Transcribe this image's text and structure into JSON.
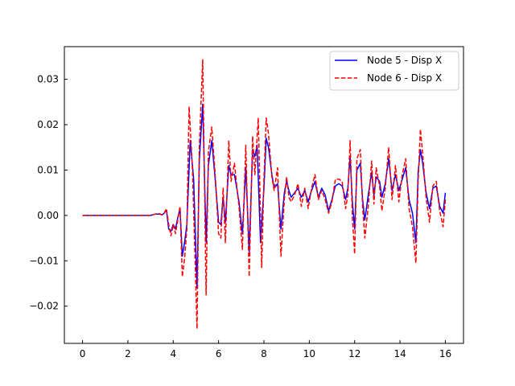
{
  "chart_data": {
    "type": "line",
    "title": "",
    "xlabel": "",
    "ylabel": "",
    "xlim": [
      -0.8,
      16.8
    ],
    "ylim": [
      -0.0282,
      0.0372
    ],
    "grid": false,
    "legend_position": "top-right",
    "x_ticks": [
      0,
      2,
      4,
      6,
      8,
      10,
      12,
      14,
      16
    ],
    "y_ticks": [
      -0.02,
      -0.01,
      0.0,
      0.01,
      0.02,
      0.03
    ],
    "x_tick_labels": [
      "0",
      "2",
      "4",
      "6",
      "8",
      "10",
      "12",
      "14",
      "16"
    ],
    "y_tick_labels": [
      "−0.02",
      "−0.01",
      "0.00",
      "0.01",
      "0.02",
      "0.03"
    ],
    "series": [
      {
        "name": "Node 5 - Disp X",
        "color": "#0000ff",
        "style": "solid",
        "points": [
          [
            0,
            0
          ],
          [
            1,
            0
          ],
          [
            2,
            0
          ],
          [
            3,
            0
          ],
          [
            3.2,
            0.0003
          ],
          [
            3.4,
            0.0003
          ],
          [
            3.5,
            0.0001
          ],
          [
            3.6,
            0.0005
          ],
          [
            3.7,
            0.0012
          ],
          [
            3.8,
            -0.003
          ],
          [
            3.9,
            -0.0035
          ],
          [
            4.0,
            -0.002
          ],
          [
            4.1,
            -0.003
          ],
          [
            4.2,
            -0.0005
          ],
          [
            4.3,
            0.0015
          ],
          [
            4.4,
            -0.009
          ],
          [
            4.5,
            -0.006
          ],
          [
            4.6,
            -0.002
          ],
          [
            4.75,
            0.0165
          ],
          [
            4.9,
            0.008
          ],
          [
            5.05,
            -0.016
          ],
          [
            5.15,
            0.012
          ],
          [
            5.3,
            0.0245
          ],
          [
            5.45,
            -0.006
          ],
          [
            5.55,
            0.011
          ],
          [
            5.7,
            0.0165
          ],
          [
            5.85,
            0.008
          ],
          [
            6.0,
            -0.0015
          ],
          [
            6.1,
            -0.002
          ],
          [
            6.2,
            0.004
          ],
          [
            6.3,
            -0.0015
          ],
          [
            6.45,
            0.011
          ],
          [
            6.55,
            0.009
          ],
          [
            6.7,
            0.009
          ],
          [
            6.8,
            0.006
          ],
          [
            6.9,
            0.003
          ],
          [
            7.05,
            -0.004
          ],
          [
            7.2,
            0.0105
          ],
          [
            7.35,
            -0.008
          ],
          [
            7.5,
            0.0145
          ],
          [
            7.6,
            0.013
          ],
          [
            7.7,
            0.0155
          ],
          [
            7.85,
            -0.006
          ],
          [
            8.0,
            0.006
          ],
          [
            8.1,
            0.017
          ],
          [
            8.2,
            0.015
          ],
          [
            8.35,
            0.009
          ],
          [
            8.45,
            0.006
          ],
          [
            8.6,
            0.007
          ],
          [
            8.75,
            -0.003
          ],
          [
            8.9,
            0.005
          ],
          [
            9.0,
            0.0075
          ],
          [
            9.1,
            0.0055
          ],
          [
            9.2,
            0.004
          ],
          [
            9.35,
            0.005
          ],
          [
            9.5,
            0.006
          ],
          [
            9.65,
            0.004
          ],
          [
            9.8,
            0.0055
          ],
          [
            9.95,
            0.003
          ],
          [
            10.1,
            0.0055
          ],
          [
            10.25,
            0.0075
          ],
          [
            10.4,
            0.004
          ],
          [
            10.55,
            0.006
          ],
          [
            10.7,
            0.0045
          ],
          [
            10.85,
            0.001
          ],
          [
            11.0,
            0.0035
          ],
          [
            11.15,
            0.0065
          ],
          [
            11.3,
            0.007
          ],
          [
            11.45,
            0.0065
          ],
          [
            11.6,
            0.0035
          ],
          [
            11.7,
            0.006
          ],
          [
            11.8,
            0.013
          ],
          [
            11.9,
            0.003
          ],
          [
            12.0,
            -0.003
          ],
          [
            12.1,
            0.01
          ],
          [
            12.25,
            0.0115
          ],
          [
            12.35,
            0.0035
          ],
          [
            12.45,
            -0.001
          ],
          [
            12.6,
            0.0045
          ],
          [
            12.75,
            0.0095
          ],
          [
            12.85,
            0.0045
          ],
          [
            12.95,
            0.0085
          ],
          [
            13.1,
            0.0075
          ],
          [
            13.2,
            0.004
          ],
          [
            13.35,
            0.007
          ],
          [
            13.5,
            0.0125
          ],
          [
            13.65,
            0.0055
          ],
          [
            13.8,
            0.009
          ],
          [
            13.95,
            0.0055
          ],
          [
            14.1,
            0.008
          ],
          [
            14.25,
            0.0105
          ],
          [
            14.4,
            0.0035
          ],
          [
            14.55,
            0.0005
          ],
          [
            14.7,
            -0.006
          ],
          [
            14.8,
            0.0095
          ],
          [
            14.9,
            0.0145
          ],
          [
            15.0,
            0.0115
          ],
          [
            15.15,
            0.005
          ],
          [
            15.3,
            0.0015
          ],
          [
            15.45,
            0.006
          ],
          [
            15.6,
            0.0065
          ],
          [
            15.75,
            0.002
          ],
          [
            15.9,
            0.0005
          ],
          [
            16.0,
            0.005
          ]
        ]
      },
      {
        "name": "Node 6 - Disp X",
        "color": "#ff0000",
        "style": "dashed",
        "points": [
          [
            0,
            0
          ],
          [
            1,
            0
          ],
          [
            2,
            0
          ],
          [
            3,
            0
          ],
          [
            3.2,
            0.0003
          ],
          [
            3.4,
            0.0004
          ],
          [
            3.5,
            0.0001
          ],
          [
            3.6,
            0.0005
          ],
          [
            3.7,
            0.0015
          ],
          [
            3.8,
            -0.002
          ],
          [
            3.9,
            -0.0045
          ],
          [
            4.0,
            -0.002
          ],
          [
            4.1,
            -0.004
          ],
          [
            4.2,
            -0.001
          ],
          [
            4.3,
            0.002
          ],
          [
            4.4,
            -0.0135
          ],
          [
            4.5,
            -0.0095
          ],
          [
            4.6,
            -0.003
          ],
          [
            4.7,
            0.024
          ],
          [
            4.85,
            0.01
          ],
          [
            5.05,
            -0.025
          ],
          [
            5.15,
            0.015
          ],
          [
            5.3,
            0.0343
          ],
          [
            5.45,
            -0.0175
          ],
          [
            5.55,
            0.014
          ],
          [
            5.7,
            0.0195
          ],
          [
            5.85,
            0.009
          ],
          [
            6.0,
            -0.004
          ],
          [
            6.1,
            -0.005
          ],
          [
            6.2,
            0.006
          ],
          [
            6.3,
            -0.006
          ],
          [
            6.45,
            0.0165
          ],
          [
            6.55,
            0.0075
          ],
          [
            6.7,
            0.0115
          ],
          [
            6.8,
            0.0065
          ],
          [
            6.9,
            0.002
          ],
          [
            7.05,
            -0.0075
          ],
          [
            7.2,
            0.0155
          ],
          [
            7.35,
            -0.0135
          ],
          [
            7.5,
            0.0175
          ],
          [
            7.6,
            0.009
          ],
          [
            7.75,
            0.0215
          ],
          [
            7.9,
            -0.0115
          ],
          [
            8.0,
            0.008
          ],
          [
            8.1,
            0.0215
          ],
          [
            8.2,
            0.018
          ],
          [
            8.35,
            0.0085
          ],
          [
            8.45,
            0.0055
          ],
          [
            8.6,
            0.0105
          ],
          [
            8.75,
            -0.009
          ],
          [
            8.9,
            0.0035
          ],
          [
            9.0,
            0.0085
          ],
          [
            9.1,
            0.004
          ],
          [
            9.2,
            0.003
          ],
          [
            9.35,
            0.0045
          ],
          [
            9.5,
            0.007
          ],
          [
            9.65,
            0.002
          ],
          [
            9.8,
            0.006
          ],
          [
            9.95,
            0.0015
          ],
          [
            10.1,
            0.006
          ],
          [
            10.25,
            0.009
          ],
          [
            10.4,
            0.0035
          ],
          [
            10.55,
            0.0055
          ],
          [
            10.7,
            0.0035
          ],
          [
            10.85,
            0.0005
          ],
          [
            11.0,
            0.003
          ],
          [
            11.15,
            0.008
          ],
          [
            11.3,
            0.008
          ],
          [
            11.45,
            0.0075
          ],
          [
            11.6,
            0.0015
          ],
          [
            11.7,
            0.0045
          ],
          [
            11.8,
            0.0165
          ],
          [
            11.9,
            -0.0005
          ],
          [
            12.0,
            -0.0085
          ],
          [
            12.1,
            0.0125
          ],
          [
            12.25,
            0.0145
          ],
          [
            12.35,
            0.002
          ],
          [
            12.45,
            -0.005
          ],
          [
            12.6,
            0.002
          ],
          [
            12.75,
            0.012
          ],
          [
            12.85,
            0.0025
          ],
          [
            12.95,
            0.0105
          ],
          [
            13.1,
            0.0065
          ],
          [
            13.2,
            0.001
          ],
          [
            13.35,
            0.006
          ],
          [
            13.5,
            0.015
          ],
          [
            13.65,
            0.0035
          ],
          [
            13.8,
            0.011
          ],
          [
            13.95,
            0.003
          ],
          [
            14.1,
            0.009
          ],
          [
            14.25,
            0.0125
          ],
          [
            14.4,
            0.0015
          ],
          [
            14.55,
            -0.0025
          ],
          [
            14.7,
            -0.0105
          ],
          [
            14.8,
            0.0075
          ],
          [
            14.9,
            0.019
          ],
          [
            15.0,
            0.0135
          ],
          [
            15.15,
            0.004
          ],
          [
            15.3,
            -0.0015
          ],
          [
            15.45,
            0.0065
          ],
          [
            15.6,
            0.0075
          ],
          [
            15.75,
            0.001
          ],
          [
            15.9,
            -0.0025
          ],
          [
            16.0,
            0.0035
          ]
        ]
      }
    ]
  }
}
